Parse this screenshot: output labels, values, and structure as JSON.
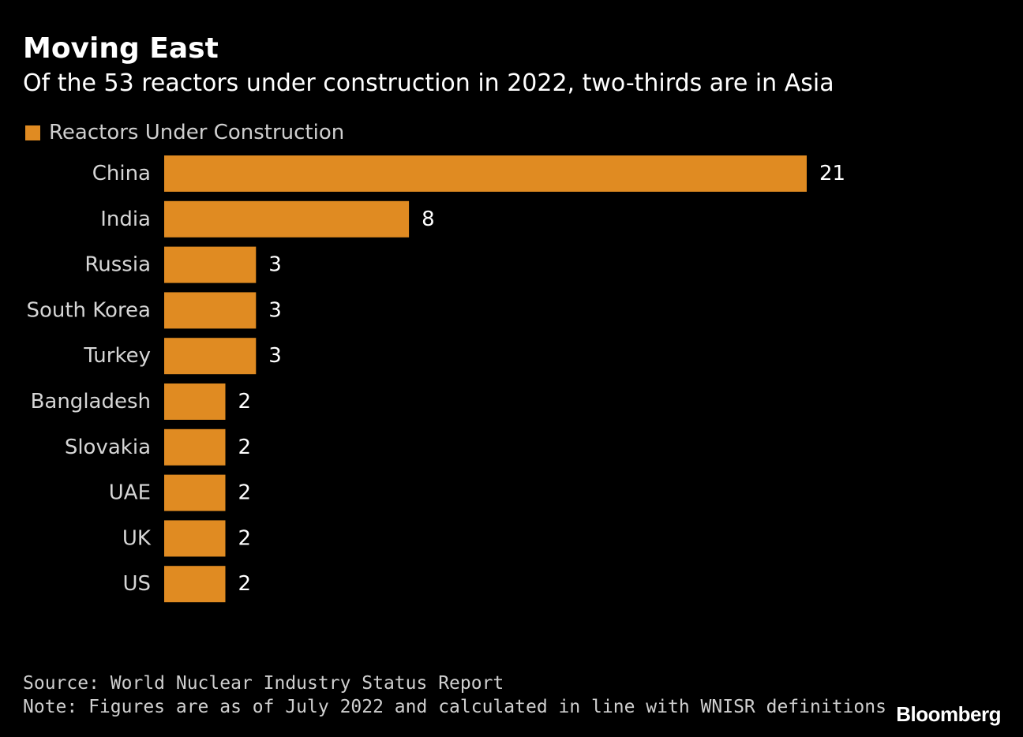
{
  "title": "Moving East",
  "subtitle": "Of the 53 reactors under construction in 2022, two-thirds are in Asia",
  "legend": {
    "label": "Reactors Under Construction",
    "color": "#E08B22"
  },
  "chart_data": {
    "type": "bar",
    "orientation": "horizontal",
    "categories": [
      "China",
      "India",
      "Russia",
      "South Korea",
      "Turkey",
      "Bangladesh",
      "Slovakia",
      "UAE",
      "UK",
      "US"
    ],
    "series": [
      {
        "name": "Reactors Under Construction",
        "values": [
          21,
          8,
          3,
          3,
          3,
          2,
          2,
          2,
          2,
          2
        ]
      }
    ],
    "data_labels": true,
    "legend_position": "top-left",
    "grid": false,
    "bar_color": "#E08B22"
  },
  "footer": {
    "source": "Source: World Nuclear Industry Status Report",
    "note": "Note: Figures are as of July 2022 and calculated in line with WNISR definitions"
  },
  "brand": "Bloomberg"
}
